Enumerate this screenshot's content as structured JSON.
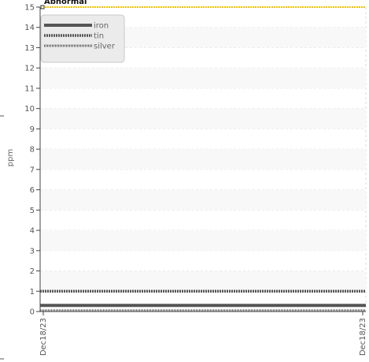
{
  "chart_data": {
    "type": "line",
    "title": "",
    "xlabel": "",
    "ylabel": "ppm",
    "ylim": [
      0,
      15
    ],
    "yticks": [
      "0",
      "1",
      "2",
      "3",
      "4",
      "5",
      "6",
      "7",
      "8",
      "9",
      "10",
      "11",
      "12",
      "13",
      "14",
      "15"
    ],
    "x": [
      "Dec18/23",
      "Dec18/23"
    ],
    "grid": true,
    "legend_position": "top-left",
    "series": [
      {
        "name": "iron",
        "values": [
          0.3,
          0.3
        ],
        "color": "#555555",
        "style": "solid"
      },
      {
        "name": "tin",
        "values": [
          1.0,
          1.0
        ],
        "color": "#555555",
        "style": "dense-dash"
      },
      {
        "name": "silver",
        "values": [
          0.05,
          0.05
        ],
        "color": "#555555",
        "style": "dotted"
      }
    ],
    "threshold": {
      "label": "Abnormal",
      "value": 15,
      "color": "#f2c400"
    }
  }
}
